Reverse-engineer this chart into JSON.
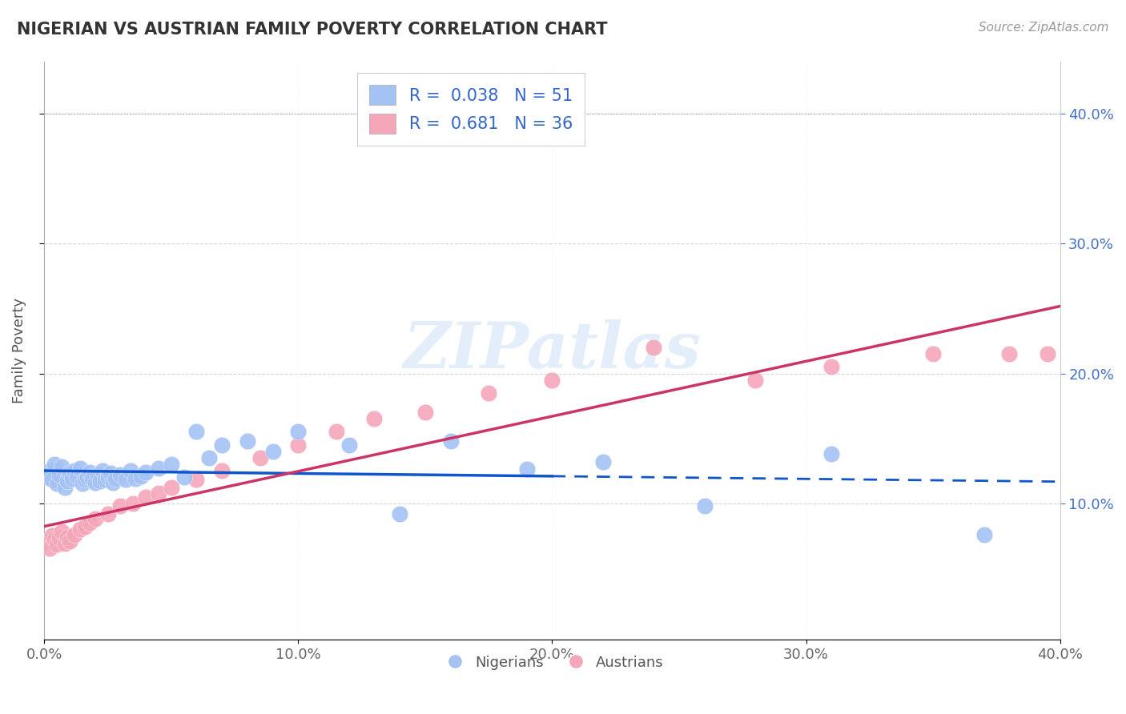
{
  "title": "NIGERIAN VS AUSTRIAN FAMILY POVERTY CORRELATION CHART",
  "source_text": "Source: ZipAtlas.com",
  "ylabel": "Family Poverty",
  "watermark": "ZIPatlas",
  "xlim": [
    0.0,
    0.4
  ],
  "ylim": [
    -0.005,
    0.44
  ],
  "xtick_labels": [
    "0.0%",
    "",
    "10.0%",
    "",
    "20.0%",
    "",
    "30.0%",
    "",
    "40.0%"
  ],
  "xtick_vals": [
    0.0,
    0.05,
    0.1,
    0.15,
    0.2,
    0.25,
    0.3,
    0.35,
    0.4
  ],
  "ytick_vals": [
    0.1,
    0.2,
    0.3,
    0.4
  ],
  "ytick_labels": [
    "10.0%",
    "20.0%",
    "30.0%",
    "40.0%"
  ],
  "nigerian_R": 0.038,
  "nigerian_N": 51,
  "austrian_R": 0.681,
  "austrian_N": 36,
  "nigerian_color": "#a4c2f4",
  "austrian_color": "#f4a7b9",
  "nigerian_line_color": "#1155cc",
  "austrian_line_color": "#cc3366",
  "legend_entries": [
    "Nigerians",
    "Austrians"
  ],
  "nigerian_x": [
    0.001,
    0.002,
    0.003,
    0.004,
    0.005,
    0.006,
    0.007,
    0.008,
    0.009,
    0.01,
    0.011,
    0.012,
    0.013,
    0.014,
    0.015,
    0.016,
    0.017,
    0.018,
    0.019,
    0.02,
    0.021,
    0.022,
    0.023,
    0.024,
    0.025,
    0.026,
    0.027,
    0.028,
    0.03,
    0.032,
    0.034,
    0.036,
    0.038,
    0.04,
    0.045,
    0.05,
    0.055,
    0.06,
    0.065,
    0.07,
    0.08,
    0.09,
    0.1,
    0.12,
    0.14,
    0.16,
    0.19,
    0.22,
    0.26,
    0.31,
    0.37
  ],
  "nigerian_y": [
    0.12,
    0.125,
    0.118,
    0.13,
    0.115,
    0.122,
    0.128,
    0.112,
    0.117,
    0.123,
    0.119,
    0.125,
    0.121,
    0.127,
    0.115,
    0.118,
    0.12,
    0.124,
    0.119,
    0.116,
    0.122,
    0.117,
    0.125,
    0.118,
    0.12,
    0.123,
    0.116,
    0.119,
    0.122,
    0.118,
    0.125,
    0.119,
    0.121,
    0.124,
    0.127,
    0.13,
    0.12,
    0.155,
    0.135,
    0.145,
    0.148,
    0.14,
    0.155,
    0.145,
    0.092,
    0.148,
    0.126,
    0.132,
    0.098,
    0.138,
    0.076
  ],
  "austrian_x": [
    0.001,
    0.002,
    0.003,
    0.004,
    0.005,
    0.006,
    0.007,
    0.008,
    0.009,
    0.01,
    0.012,
    0.014,
    0.016,
    0.018,
    0.02,
    0.025,
    0.03,
    0.035,
    0.04,
    0.045,
    0.05,
    0.06,
    0.07,
    0.085,
    0.1,
    0.115,
    0.13,
    0.15,
    0.175,
    0.2,
    0.24,
    0.28,
    0.31,
    0.35,
    0.38,
    0.395
  ],
  "austrian_y": [
    0.07,
    0.065,
    0.075,
    0.072,
    0.068,
    0.073,
    0.078,
    0.069,
    0.074,
    0.071,
    0.076,
    0.08,
    0.082,
    0.085,
    0.088,
    0.092,
    0.098,
    0.1,
    0.105,
    0.108,
    0.112,
    0.118,
    0.125,
    0.135,
    0.145,
    0.155,
    0.165,
    0.17,
    0.185,
    0.195,
    0.22,
    0.195,
    0.205,
    0.215,
    0.215,
    0.215
  ]
}
